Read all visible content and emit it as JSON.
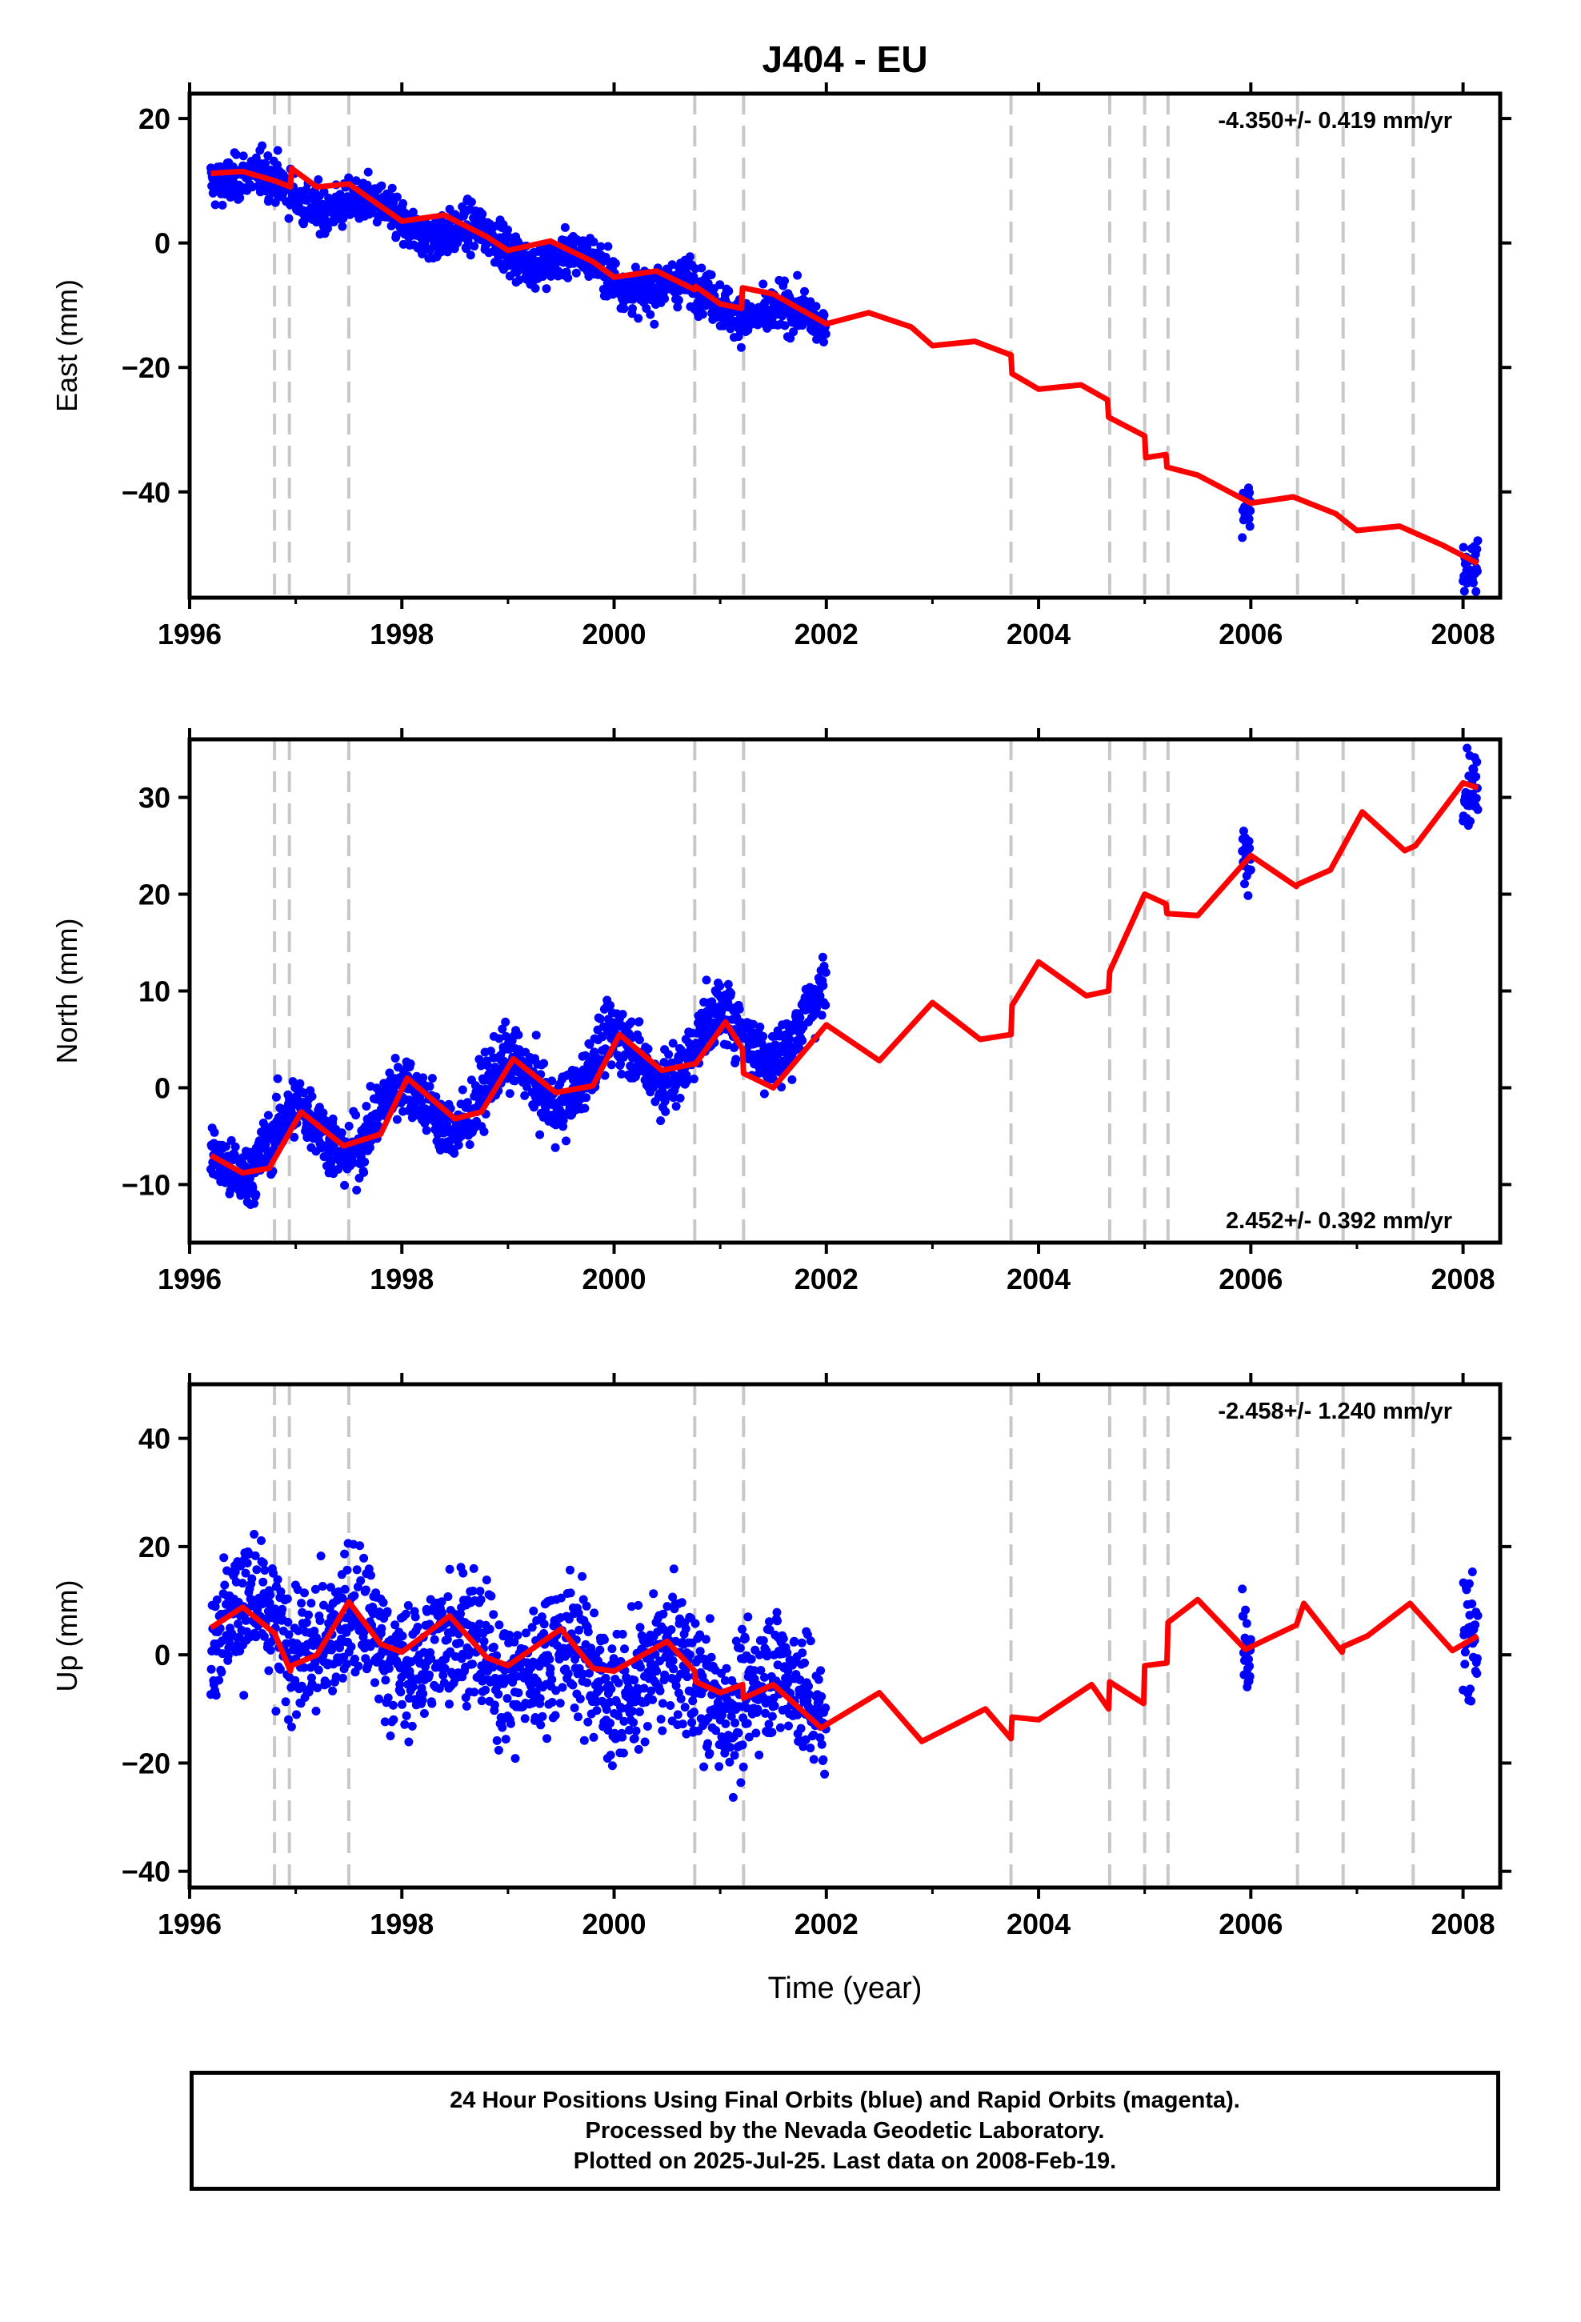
{
  "chart_data": [
    {
      "type": "scatter",
      "title": "J404 - EU",
      "ylabel": "East (mm)",
      "xlabel": "",
      "xlim": [
        1996.0,
        2008.35
      ],
      "ylim": [
        -57,
        24
      ],
      "xticks": [
        "1996",
        "1998",
        "2000",
        "2002",
        "2004",
        "2006",
        "2008"
      ],
      "yticks": [
        20,
        0,
        -20,
        -40
      ],
      "ytick_labels": [
        "20",
        "0",
        "−20",
        "−40"
      ],
      "rate_text": "-4.350+/- 0.419 mm/yr",
      "rate_position": "top-right",
      "series": [
        {
          "name": "Final Orbits",
          "color": "#0000ff",
          "x_start": 1996.2,
          "x_end": 2002.0,
          "model": {
            "offset": 11.5,
            "rate": -4.35,
            "amp": 1.8,
            "phase": 1996.45
          },
          "scatter_sd": 2.5,
          "extra_clusters": [
            [
              2005.92,
              2006.0,
              -42
            ],
            [
              2008.0,
              2008.14,
              -52
            ]
          ]
        },
        {
          "name": "Model",
          "color": "#ff0000",
          "x": [
            1996.2,
            1996.5,
            1996.8,
            1996.95,
            1996.96,
            1997.2,
            1997.5,
            1998.0,
            1998.4,
            1998.8,
            1999.0,
            1999.4,
            1999.8,
            2000.0,
            2000.4,
            2000.76,
            2000.77,
            2001.0,
            2001.2,
            2001.21,
            2001.5,
            2002.0,
            2002.4,
            2002.8,
            2003.0,
            2003.4,
            2003.74,
            2003.75,
            2004.0,
            2004.4,
            2004.65,
            2004.66,
            2005.0,
            2005.01,
            2005.2,
            2005.21,
            2005.5,
            2006.0,
            2006.4,
            2006.8,
            2007.0,
            2007.4,
            2007.8,
            2008.14
          ],
          "y": [
            11.2,
            11.5,
            10.0,
            9.0,
            12.0,
            9.0,
            9.5,
            3.5,
            4.5,
            1.0,
            -1.2,
            0.3,
            -3.0,
            -5.5,
            -4.5,
            -7.5,
            -7.0,
            -9.8,
            -10.5,
            -7.2,
            -8.2,
            -13.0,
            -11.2,
            -13.5,
            -16.5,
            -15.8,
            -18.0,
            -21.0,
            -23.5,
            -22.8,
            -25.2,
            -28.0,
            -31.0,
            -34.5,
            -34.0,
            -36.0,
            -37.3,
            -41.8,
            -40.8,
            -43.5,
            -46.2,
            -45.5,
            -48.5,
            -51.5
          ]
        }
      ],
      "breaks": [
        1996.8,
        1996.94,
        1997.5,
        2000.76,
        2001.22,
        2003.74,
        2004.67,
        2005.0,
        2005.22,
        2006.44,
        2006.87,
        2007.53
      ]
    },
    {
      "type": "scatter",
      "title": "",
      "ylabel": "North (mm)",
      "xlabel": "",
      "xlim": [
        1996.0,
        2008.35
      ],
      "ylim": [
        -16,
        36
      ],
      "xticks": [
        "1996",
        "1998",
        "2000",
        "2002",
        "2004",
        "2006",
        "2008"
      ],
      "yticks": [
        30,
        20,
        10,
        0,
        -10
      ],
      "ytick_labels": [
        "30",
        "20",
        "10",
        "0",
        "−10"
      ],
      "rate_text": "2.452+/- 0.392 mm/yr",
      "rate_position": "bottom-right",
      "series": [
        {
          "name": "Final Orbits",
          "color": "#0000ff",
          "x_start": 1996.2,
          "x_end": 2002.0,
          "model": {
            "offset": -7.0,
            "rate": 2.45,
            "amp": 3.0,
            "phase": 1996.75
          },
          "scatter_sd": 2.3,
          "extra_clusters": [
            [
              2005.92,
              2006.0,
              24
            ],
            [
              2008.0,
              2008.14,
              31
            ]
          ]
        },
        {
          "name": "Model",
          "color": "#ff0000",
          "x": [
            1996.2,
            1996.5,
            1996.75,
            1997.05,
            1997.45,
            1997.8,
            1998.05,
            1998.5,
            1998.75,
            1999.05,
            1999.45,
            1999.8,
            2000.05,
            2000.45,
            2000.77,
            2001.05,
            2001.21,
            2001.22,
            2001.5,
            2002.0,
            2002.5,
            2003.0,
            2003.45,
            2003.74,
            2003.75,
            2004.0,
            2004.45,
            2004.66,
            2004.67,
            2005.0,
            2005.2,
            2005.21,
            2005.5,
            2006.0,
            2006.43,
            2006.44,
            2006.75,
            2007.05,
            2007.45,
            2007.55,
            2008.0,
            2008.14
          ],
          "y": [
            -7.0,
            -8.8,
            -8.3,
            -2.5,
            -6.0,
            -4.8,
            1.0,
            -3.2,
            -2.5,
            3.0,
            -0.5,
            0.2,
            5.5,
            1.8,
            2.5,
            6.8,
            4.0,
            1.5,
            0.0,
            6.5,
            2.8,
            8.8,
            5.0,
            5.5,
            8.5,
            13.0,
            9.5,
            10.0,
            12.0,
            20.0,
            19.0,
            18.0,
            17.8,
            24.0,
            20.8,
            21.0,
            22.5,
            28.5,
            24.5,
            25.0,
            31.5,
            31.0
          ]
        }
      ],
      "breaks": [
        1996.8,
        1996.94,
        1997.5,
        2000.76,
        2001.22,
        2003.74,
        2004.67,
        2005.0,
        2005.22,
        2006.44,
        2006.87,
        2007.53
      ]
    },
    {
      "type": "scatter",
      "title": "",
      "ylabel": "Up (mm)",
      "xlabel": "Time (year)",
      "xlim": [
        1996.0,
        2008.35
      ],
      "ylim": [
        -43,
        50
      ],
      "xticks": [
        "1996",
        "1998",
        "2000",
        "2002",
        "2004",
        "2006",
        "2008"
      ],
      "yticks": [
        40,
        20,
        0,
        -20,
        -40
      ],
      "ytick_labels": [
        "40",
        "20",
        "0",
        "−20",
        "−40"
      ],
      "rate_text": "-2.458+/- 1.240 mm/yr",
      "rate_position": "top-right",
      "series": [
        {
          "name": "Final Orbits",
          "color": "#0000ff",
          "x_start": 1996.2,
          "x_end": 2002.0,
          "model": {
            "offset": 6.0,
            "rate": -2.46,
            "amp": 4.5,
            "phase": 1996.3
          },
          "scatter_sd": 8.5,
          "extra_clusters": [
            [
              2005.92,
              2006.0,
              2
            ],
            [
              2008.0,
              2008.14,
              3
            ]
          ]
        },
        {
          "name": "Model",
          "color": "#ff0000",
          "x": [
            1996.2,
            1996.5,
            1996.8,
            1996.95,
            1996.96,
            1997.2,
            1997.5,
            1997.8,
            1998.0,
            1998.45,
            1998.8,
            1999.0,
            1999.5,
            1999.8,
            2000.0,
            2000.5,
            2000.76,
            2000.77,
            2001.0,
            2001.21,
            2001.22,
            2001.5,
            2001.95,
            2002.5,
            2002.9,
            2003.5,
            2003.74,
            2003.75,
            2004.0,
            2004.5,
            2004.66,
            2004.67,
            2004.99,
            2005.0,
            2005.21,
            2005.22,
            2005.5,
            2005.95,
            2006.43,
            2006.5,
            2006.86,
            2006.87,
            2007.1,
            2007.5,
            2007.9,
            2008.14
          ],
          "y": [
            5.0,
            8.8,
            4.0,
            -3.0,
            -2.0,
            0.0,
            9.8,
            2.0,
            0.5,
            7.2,
            -0.5,
            -2.0,
            4.8,
            -2.5,
            -3.0,
            2.5,
            -3.0,
            -5.0,
            -7.0,
            -5.5,
            -8.0,
            -5.5,
            -13.5,
            -7.0,
            -16.0,
            -10.0,
            -15.5,
            -11.5,
            -12.0,
            -5.5,
            -10.0,
            -5.0,
            -9.0,
            -2.0,
            -1.5,
            6.0,
            10.2,
            1.0,
            5.5,
            9.5,
            0.5,
            1.5,
            3.5,
            9.5,
            0.8,
            3.5
          ]
        }
      ],
      "breaks": [
        1996.8,
        1996.94,
        1997.5,
        2000.76,
        2001.22,
        2003.74,
        2004.67,
        2005.0,
        2005.22,
        2006.44,
        2006.87,
        2007.53
      ]
    }
  ],
  "caption": {
    "line1": "24 Hour Positions Using Final Orbits (blue) and Rapid Orbits (magenta).",
    "line2": "Processed by the Nevada Geodetic Laboratory.",
    "line3": "Plotted on 2025-Jul-25. Last data on 2008-Feb-19."
  },
  "colors": {
    "points": "#0000ff",
    "model": "#ff0000",
    "breaks": "#c8c8c8",
    "frame": "#000000"
  }
}
